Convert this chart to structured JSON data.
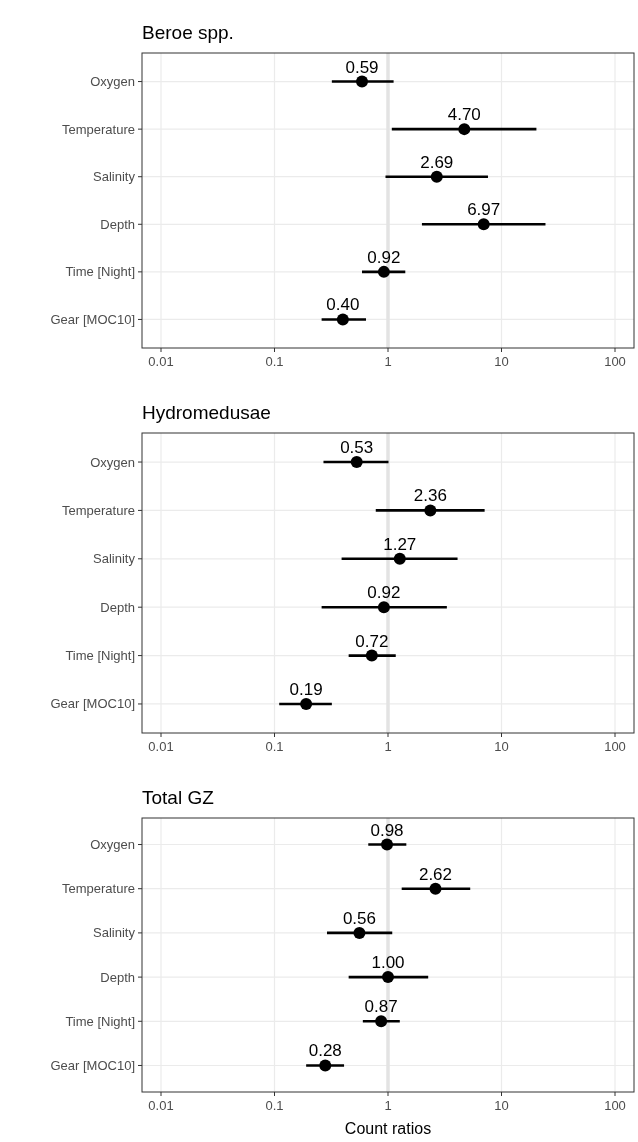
{
  "chart_data": [
    {
      "type": "scatter",
      "title": "Beroe spp.",
      "orientation": "horizontal",
      "categories": [
        "Oxygen",
        "Temperature",
        "Salinity",
        "Depth",
        "Time [Night]",
        "Gear [MOC10]"
      ],
      "series": [
        {
          "color": "#000000",
          "values": [
            0.59,
            4.7,
            2.69,
            6.97,
            0.92,
            0.4
          ],
          "value_labels": [
            "0.59",
            "4.70",
            "2.69",
            "6.97",
            "0.92",
            "0.40"
          ],
          "errors": [
            [
              0.32,
              1.12
            ],
            [
              1.08,
              20.3
            ],
            [
              0.95,
              7.6
            ],
            [
              1.99,
              24.4
            ],
            [
              0.59,
              1.42
            ],
            [
              0.26,
              0.64
            ]
          ]
        }
      ],
      "xlim": [
        0.0068,
        147
      ],
      "xticks": [
        0.01,
        0.1,
        1,
        10,
        100
      ],
      "log": "x",
      "grid": true,
      "marker": "circle",
      "ref_lines": [
        {
          "axis": "x",
          "value": 1,
          "color": "#e3e3e3"
        }
      ]
    },
    {
      "type": "scatter",
      "title": "Hydromedusae",
      "orientation": "horizontal",
      "categories": [
        "Oxygen",
        "Temperature",
        "Salinity",
        "Depth",
        "Time [Night]",
        "Gear [MOC10]"
      ],
      "series": [
        {
          "color": "#000000",
          "values": [
            0.53,
            2.36,
            1.27,
            0.92,
            0.72,
            0.19
          ],
          "value_labels": [
            "0.53",
            "2.36",
            "1.27",
            "0.92",
            "0.72",
            "0.19"
          ],
          "errors": [
            [
              0.27,
              1.01
            ],
            [
              0.78,
              7.1
            ],
            [
              0.39,
              4.1
            ],
            [
              0.26,
              3.3
            ],
            [
              0.45,
              1.17
            ],
            [
              0.11,
              0.32
            ]
          ]
        }
      ],
      "xlim": [
        0.0068,
        147
      ],
      "xticks": [
        0.01,
        0.1,
        1,
        10,
        100
      ],
      "log": "x",
      "grid": true,
      "marker": "circle",
      "ref_lines": [
        {
          "axis": "x",
          "value": 1,
          "color": "#e3e3e3"
        }
      ]
    },
    {
      "type": "scatter",
      "title": "Total GZ",
      "xlabel": "Count ratios",
      "orientation": "horizontal",
      "categories": [
        "Oxygen",
        "Temperature",
        "Salinity",
        "Depth",
        "Time [Night]",
        "Gear [MOC10]"
      ],
      "series": [
        {
          "color": "#000000",
          "values": [
            0.98,
            2.62,
            0.56,
            1.0,
            0.87,
            0.28
          ],
          "value_labels": [
            "0.98",
            "2.62",
            "0.56",
            "1.00",
            "0.87",
            "0.28"
          ],
          "errors": [
            [
              0.67,
              1.45
            ],
            [
              1.32,
              5.3
            ],
            [
              0.29,
              1.09
            ],
            [
              0.45,
              2.26
            ],
            [
              0.6,
              1.27
            ],
            [
              0.19,
              0.41
            ]
          ]
        }
      ],
      "xlim": [
        0.0068,
        147
      ],
      "xticks": [
        0.01,
        0.1,
        1,
        10,
        100
      ],
      "log": "x",
      "grid": true,
      "marker": "circle",
      "ref_lines": [
        {
          "axis": "x",
          "value": 1,
          "color": "#e3e3e3"
        }
      ]
    }
  ]
}
